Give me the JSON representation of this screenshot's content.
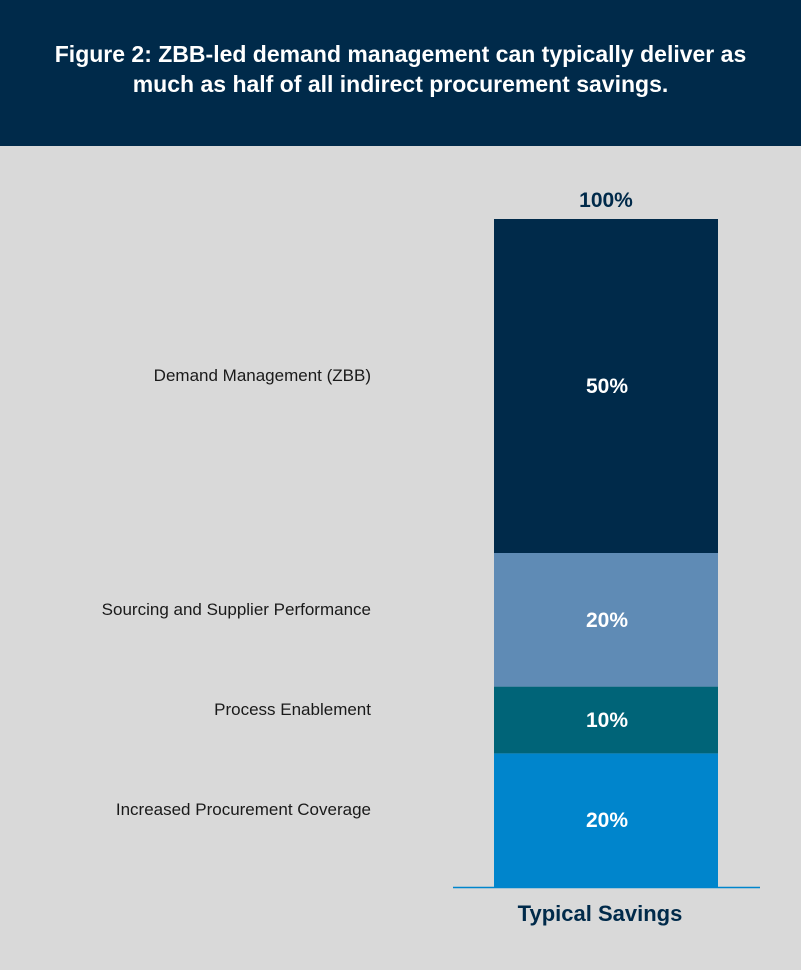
{
  "header": {
    "title": "Figure 2: ZBB-led demand management can typically deliver as much as half of all indirect procurement savings."
  },
  "chart_data": {
    "type": "bar",
    "stacked": true,
    "title": "Figure 2: ZBB-led demand management can typically deliver as much as half of all indirect procurement savings.",
    "categories": [
      "Typical Savings"
    ],
    "xlabel": "",
    "ylabel": "",
    "ylim": [
      0,
      100
    ],
    "grid": false,
    "legend": "left",
    "total_label": "100%",
    "series": [
      {
        "name": "Increased Procurement Coverage",
        "values": [
          20
        ],
        "label": "20%",
        "color": "#0085cc"
      },
      {
        "name": "Process Enablement",
        "values": [
          10
        ],
        "label": "10%",
        "color": "#006478"
      },
      {
        "name": "Sourcing and Supplier Performance",
        "values": [
          20
        ],
        "label": "20%",
        "color": "#5f8bb5"
      },
      {
        "name": "Demand Management (ZBB)",
        "values": [
          50
        ],
        "label": "50%",
        "color": "#002a4a"
      }
    ],
    "colors": {
      "baseline": "#0085cc",
      "text_dark": "#002a4a",
      "text_light": "#ffffff",
      "legend_text": "#1a1a1a"
    }
  }
}
